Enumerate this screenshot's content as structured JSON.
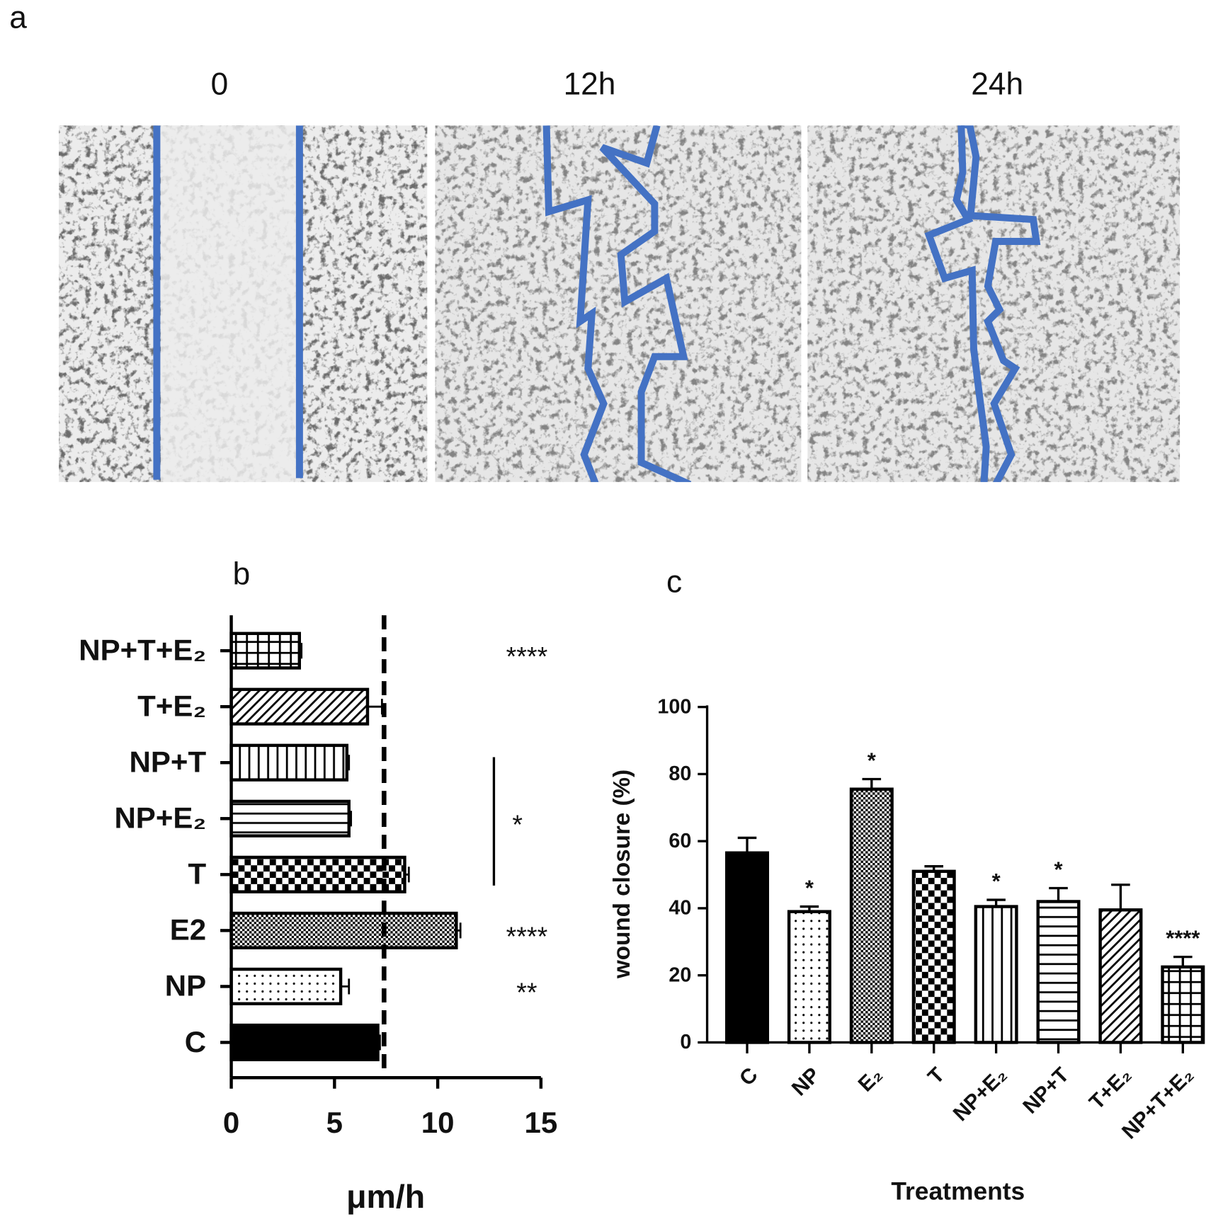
{
  "panel_a": {
    "label": "a",
    "titles": [
      "0",
      "12h",
      "24h"
    ]
  },
  "chart_data": [
    {
      "type": "bar",
      "label": "b",
      "orientation": "horizontal",
      "color": "#000000",
      "categories": [
        "C",
        "NP",
        "E2",
        "T",
        "NP+E₂",
        "NP+T",
        "T+E₂",
        "NP+T+E₂"
      ],
      "values": [
        7.1,
        5.3,
        10.9,
        8.4,
        5.7,
        5.6,
        6.6,
        3.3
      ],
      "errors": [
        0.1,
        0.4,
        0.2,
        0.2,
        0.1,
        0.1,
        0.7,
        0.1
      ],
      "significance": [
        null,
        "**",
        "****",
        null,
        null,
        null,
        null,
        "****"
      ],
      "bracket": {
        "label": "*",
        "categories": [
          "T",
          "NP+T"
        ]
      },
      "reference_line": 7.4,
      "xlim": [
        0,
        15
      ],
      "xticks": [
        0,
        5,
        10,
        15
      ],
      "xlabel": "μm/h"
    },
    {
      "type": "bar",
      "label": "c",
      "orientation": "vertical",
      "color": "#000000",
      "categories": [
        "C",
        "NP",
        "E₂",
        "T",
        "NP+E₂",
        "NP+T",
        "T+E₂",
        "NP+T+E₂"
      ],
      "values": [
        56.5,
        39,
        75.5,
        51,
        40.5,
        42,
        39.5,
        22.5
      ],
      "errors": [
        4.5,
        1.5,
        3,
        1.5,
        2,
        4,
        7.5,
        3
      ],
      "significance": [
        null,
        "*",
        "*",
        null,
        "*",
        "*",
        null,
        "****"
      ],
      "ylim": [
        0,
        100
      ],
      "yticks": [
        0,
        20,
        40,
        60,
        80,
        100
      ],
      "ylabel": "wound closure (%)",
      "xlabel": "Treatments"
    }
  ]
}
